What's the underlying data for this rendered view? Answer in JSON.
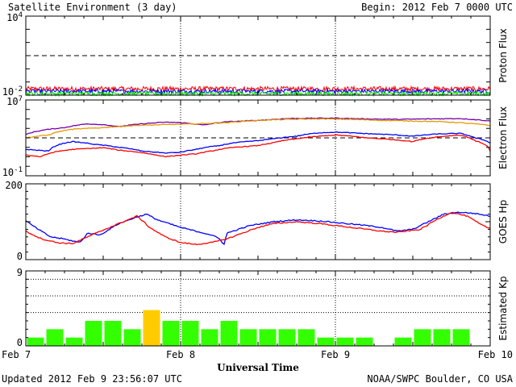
{
  "header": {
    "title": "Satellite Environment (3 day)",
    "begin": "Begin:  2012 Feb 7 0000 UTC"
  },
  "footer": {
    "updated": "Updated 2012 Feb  9 23:56:07 UTC",
    "credit": "NOAA/SWPC Boulder, CO USA"
  },
  "chart_data": [
    {
      "type": "line",
      "ylabel": "Proton Flux",
      "yscale": "log",
      "ylim": [
        0.01,
        10000
      ],
      "yticks": [
        {
          "value": 0.01,
          "base": "10",
          "exp": "-2"
        },
        {
          "value": 10000,
          "base": "10",
          "exp": "4"
        }
      ],
      "threshold": 10,
      "series": [
        {
          "color": "#ff0000",
          "level": 0.03,
          "noise": 0.18
        },
        {
          "color": "#0000ff",
          "level": 0.02,
          "noise": 0.15
        },
        {
          "color": "#00dd00",
          "level": 0.013,
          "noise": 0.15
        }
      ]
    },
    {
      "type": "line",
      "ylabel": "Electron Flux",
      "yscale": "log",
      "ylim": [
        0.1,
        10000000
      ],
      "yticks": [
        {
          "value": 0.1,
          "base": "10",
          "exp": "-1"
        },
        {
          "value": 10000000,
          "base": "10",
          "exp": "7"
        }
      ],
      "threshold": 1000,
      "series": [
        {
          "color": "#7700aa",
          "points": [
            [
              0,
              2200.0
            ],
            [
              0.1,
              6000.0
            ],
            [
              0.25,
              12000.0
            ],
            [
              0.4,
              30000.0
            ],
            [
              0.5,
              25000.0
            ],
            [
              0.6,
              15000.0
            ],
            [
              0.7,
              25000.0
            ],
            [
              0.9,
              45000.0
            ],
            [
              1.0,
              40000.0
            ],
            [
              1.15,
              22000.0
            ],
            [
              1.3,
              50000.0
            ],
            [
              1.5,
              70000.0
            ],
            [
              1.7,
              110000.0
            ],
            [
              1.9,
              120000.0
            ],
            [
              2.0,
              120000.0
            ],
            [
              2.2,
              100000.0
            ],
            [
              2.4,
              90000.0
            ],
            [
              2.6,
              100000.0
            ],
            [
              2.8,
              110000.0
            ],
            [
              3.0,
              60000.0
            ]
          ]
        },
        {
          "color": "#e69900",
          "points": [
            [
              0,
              1000.0
            ],
            [
              0.15,
              2000.0
            ],
            [
              0.3,
              8000.0
            ],
            [
              0.5,
              12000.0
            ],
            [
              0.7,
              20000.0
            ],
            [
              0.9,
              25000.0
            ],
            [
              1.1,
              30000.0
            ],
            [
              1.3,
              40000.0
            ],
            [
              1.5,
              70000.0
            ],
            [
              1.7,
              90000.0
            ],
            [
              1.9,
              100000.0
            ],
            [
              2.1,
              90000.0
            ],
            [
              2.3,
              70000.0
            ],
            [
              2.5,
              60000.0
            ],
            [
              2.7,
              50000.0
            ],
            [
              2.9,
              30000.0
            ],
            [
              3.0,
              20000.0
            ]
          ]
        },
        {
          "color": "#0000ff",
          "points": [
            [
              0,
              60
            ],
            [
              0.15,
              40
            ],
            [
              0.3,
              400
            ],
            [
              0.45,
              200
            ],
            [
              0.6,
              100
            ],
            [
              0.75,
              40
            ],
            [
              0.9,
              25
            ],
            [
              1.0,
              30
            ],
            [
              1.1,
              60
            ],
            [
              1.25,
              150
            ],
            [
              1.35,
              300
            ],
            [
              1.5,
              500
            ],
            [
              1.6,
              800
            ],
            [
              1.75,
              1500
            ],
            [
              1.9,
              3500
            ],
            [
              2.0,
              4000
            ],
            [
              2.2,
              2800
            ],
            [
              2.4,
              2000
            ],
            [
              2.5,
              1500
            ],
            [
              2.65,
              2500
            ],
            [
              2.8,
              3000
            ],
            [
              2.9,
              1000
            ],
            [
              3.0,
              300
            ]
          ]
        },
        {
          "color": "#ff0000",
          "points": [
            [
              0,
              15
            ],
            [
              0.1,
              10
            ],
            [
              0.3,
              60
            ],
            [
              0.5,
              90
            ],
            [
              0.6,
              50
            ],
            [
              0.8,
              20
            ],
            [
              0.9,
              10
            ],
            [
              1.0,
              15
            ],
            [
              1.1,
              20
            ],
            [
              1.2,
              40
            ],
            [
              1.35,
              100
            ],
            [
              1.5,
              150
            ],
            [
              1.6,
              300
            ],
            [
              1.75,
              800
            ],
            [
              1.9,
              1500
            ],
            [
              2.0,
              2000
            ],
            [
              2.2,
              1000
            ],
            [
              2.4,
              600
            ],
            [
              2.5,
              400
            ],
            [
              2.65,
              1200
            ],
            [
              2.8,
              2000
            ],
            [
              2.9,
              500
            ],
            [
              3.0,
              40
            ]
          ]
        }
      ]
    },
    {
      "type": "line",
      "ylabel": "GOES Hp",
      "ylim": [
        0,
        200
      ],
      "yticks": [
        {
          "value": 0,
          "label": "0"
        },
        {
          "value": 200,
          "label": "200"
        }
      ],
      "series": [
        {
          "color": "#0000ff",
          "points": [
            [
              0,
              102
            ],
            [
              0.08,
              80
            ],
            [
              0.16,
              60
            ],
            [
              0.24,
              55
            ],
            [
              0.35,
              45
            ],
            [
              0.4,
              70
            ],
            [
              0.48,
              65
            ],
            [
              0.6,
              95
            ],
            [
              0.7,
              110
            ],
            [
              0.78,
              120
            ],
            [
              0.85,
              105
            ],
            [
              1.0,
              85
            ],
            [
              1.1,
              75
            ],
            [
              1.2,
              65
            ],
            [
              1.25,
              55
            ],
            [
              1.28,
              40
            ],
            [
              1.3,
              70
            ],
            [
              1.45,
              90
            ],
            [
              1.6,
              100
            ],
            [
              1.75,
              105
            ],
            [
              1.9,
              102
            ],
            [
              2.0,
              98
            ],
            [
              2.2,
              90
            ],
            [
              2.3,
              85
            ],
            [
              2.4,
              75
            ],
            [
              2.5,
              80
            ],
            [
              2.6,
              100
            ],
            [
              2.7,
              120
            ],
            [
              2.8,
              125
            ],
            [
              2.9,
              122
            ],
            [
              3.0,
              115
            ]
          ]
        },
        {
          "color": "#ff0000",
          "points": [
            [
              0,
              75
            ],
            [
              0.1,
              55
            ],
            [
              0.2,
              45
            ],
            [
              0.3,
              42
            ],
            [
              0.4,
              60
            ],
            [
              0.5,
              78
            ],
            [
              0.6,
              95
            ],
            [
              0.72,
              115
            ],
            [
              0.8,
              85
            ],
            [
              0.9,
              60
            ],
            [
              1.0,
              45
            ],
            [
              1.1,
              40
            ],
            [
              1.2,
              45
            ],
            [
              1.3,
              55
            ],
            [
              1.4,
              70
            ],
            [
              1.5,
              85
            ],
            [
              1.6,
              95
            ],
            [
              1.75,
              100
            ],
            [
              1.9,
              95
            ],
            [
              2.0,
              90
            ],
            [
              2.1,
              85
            ],
            [
              2.2,
              80
            ],
            [
              2.3,
              75
            ],
            [
              2.4,
              72
            ],
            [
              2.55,
              80
            ],
            [
              2.65,
              105
            ],
            [
              2.75,
              125
            ],
            [
              2.85,
              115
            ],
            [
              2.95,
              90
            ],
            [
              3.0,
              82
            ]
          ]
        }
      ]
    },
    {
      "type": "bar",
      "ylabel": "Estimated Kp",
      "ylim": [
        0,
        9
      ],
      "yticks": [
        {
          "value": 0,
          "label": "0"
        },
        {
          "value": 9,
          "label": "9"
        }
      ],
      "gridlines": [
        4,
        6,
        8
      ],
      "colors": {
        "normal": "#33ff00",
        "high": "#ffcc00"
      },
      "values": [
        1,
        2,
        1,
        3,
        3,
        2,
        4.3,
        3,
        3,
        2,
        3,
        2,
        2,
        2,
        2,
        1,
        1,
        1,
        0,
        1,
        2,
        2,
        2,
        0
      ],
      "high_threshold": 4
    }
  ],
  "x_axis": {
    "xlabel": "Universal Time",
    "ticks": [
      {
        "day": 0,
        "label": "Feb 7"
      },
      {
        "day": 1,
        "label": "Feb 8"
      },
      {
        "day": 2,
        "label": "Feb 9"
      },
      {
        "day": 3,
        "label": "Feb 10"
      }
    ]
  }
}
